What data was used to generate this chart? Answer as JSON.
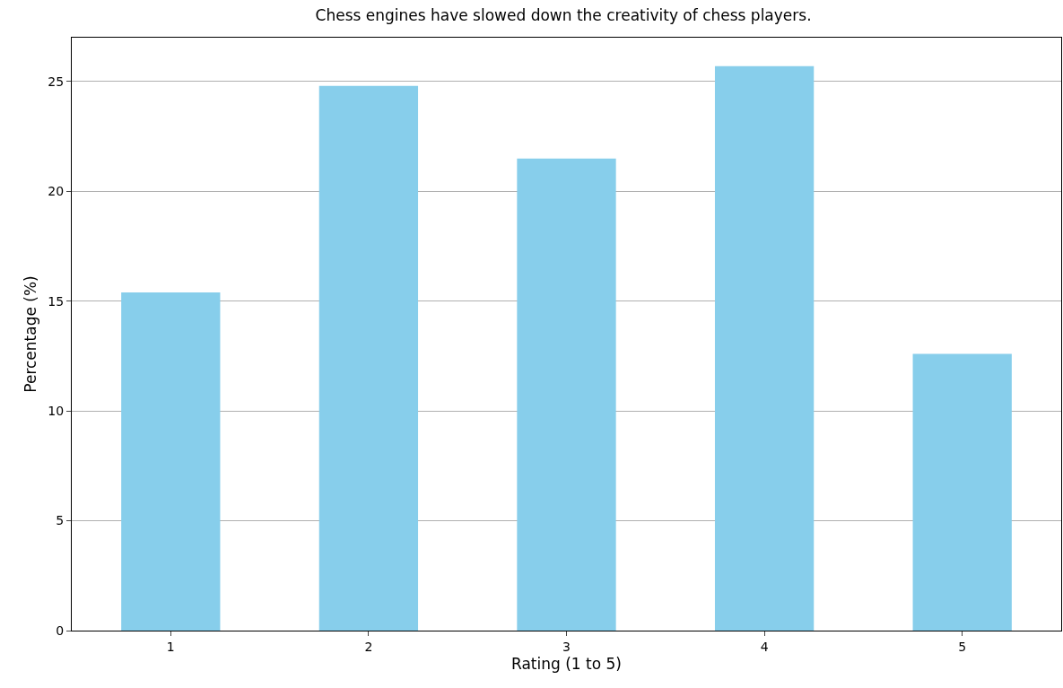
{
  "chart_data": {
    "type": "bar",
    "title": "Chess engines have slowed down the creativity of chess players.",
    "xlabel": "Rating (1 to 5)",
    "ylabel": "Percentage (%)",
    "categories": [
      "1",
      "2",
      "3",
      "4",
      "5"
    ],
    "values": [
      15.4,
      24.8,
      21.5,
      25.7,
      12.6
    ],
    "color": "#87ceeb",
    "ylim": [
      0,
      27
    ],
    "yticks": [
      0,
      5,
      10,
      15,
      20,
      25
    ],
    "grid": "y"
  }
}
